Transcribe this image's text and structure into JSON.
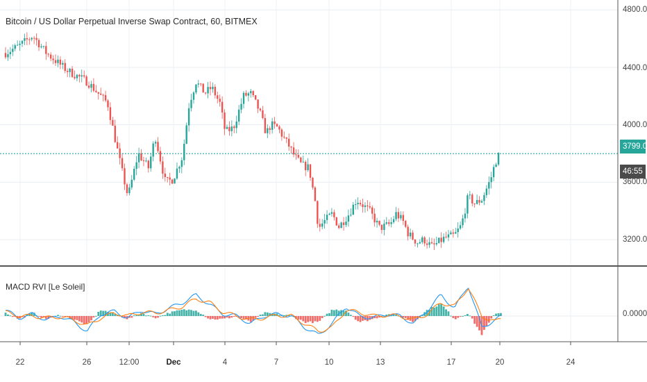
{
  "header": {
    "title": "Bitcoin / US Dollar Perpetual Inverse Swap Contract, 60, BITMEX",
    "indicator": "MACD RVI [Le Soleil]"
  },
  "price_axis": {
    "ticks": [
      "4800.0",
      "4400.0",
      "4000.0",
      "3600.0",
      "3200.0"
    ],
    "last_price": "3799.0",
    "countdown": "46:55",
    "last_price_color": "#26a69a",
    "countdown_color": "#4a4a4a"
  },
  "indicator_axis": {
    "ticks": [
      "0.0000"
    ]
  },
  "time_axis": {
    "labels": [
      "22",
      "26",
      "12:00",
      "Dec",
      "4",
      "7",
      "10",
      "13",
      "17",
      "20",
      "24"
    ]
  },
  "colors": {
    "up": "#26a69a",
    "down": "#ef5350",
    "macd_line": "#2196f3",
    "signal_line": "#ff7f0e",
    "price_line": "#26a69a"
  },
  "chart_data": [
    {
      "type": "candlestick",
      "title": "Bitcoin / US Dollar Perpetual Inverse Swap Contract, 60, BITMEX",
      "x_labels": [
        "22",
        "26",
        "12:00",
        "Dec",
        "4",
        "7",
        "10",
        "13",
        "17",
        "20",
        "24"
      ],
      "ylim": [
        3050,
        4850
      ],
      "last_price": 3799.0,
      "price_path": [
        [
          0,
          4500
        ],
        [
          2,
          4550
        ],
        [
          4,
          4620
        ],
        [
          6,
          4500
        ],
        [
          9,
          4380
        ],
        [
          12,
          4300
        ],
        [
          15,
          4150
        ],
        [
          17,
          3700
        ],
        [
          18,
          3500
        ],
        [
          19.5,
          3800
        ],
        [
          21,
          3700
        ],
        [
          22,
          3920
        ],
        [
          23.5,
          3600
        ],
        [
          24.6,
          3620
        ],
        [
          26,
          3780
        ],
        [
          27,
          4150
        ],
        [
          28,
          4300
        ],
        [
          29.3,
          4220
        ],
        [
          30.3,
          4260
        ],
        [
          31.5,
          4150
        ],
        [
          32.3,
          3950
        ],
        [
          33.5,
          3980
        ],
        [
          35,
          4200
        ],
        [
          36,
          4220
        ],
        [
          37.3,
          4100
        ],
        [
          38.3,
          3940
        ],
        [
          39,
          4000
        ],
        [
          40,
          3980
        ],
        [
          41,
          3900
        ],
        [
          41.7,
          3850
        ],
        [
          42.5,
          3780
        ],
        [
          43.5,
          3720
        ],
        [
          44.6,
          3700
        ],
        [
          45.5,
          3470
        ],
        [
          46,
          3280
        ],
        [
          46.7,
          3320
        ],
        [
          48,
          3380
        ],
        [
          49,
          3290
        ],
        [
          50.5,
          3380
        ],
        [
          51.6,
          3480
        ],
        [
          53.5,
          3400
        ],
        [
          55,
          3280
        ],
        [
          56.6,
          3310
        ],
        [
          57.4,
          3380
        ],
        [
          58.4,
          3330
        ],
        [
          59.2,
          3240
        ],
        [
          60.5,
          3180
        ],
        [
          61.5,
          3200
        ],
        [
          62.7,
          3150
        ],
        [
          64.5,
          3210
        ],
        [
          66,
          3230
        ],
        [
          67,
          3300
        ],
        [
          68,
          3500
        ],
        [
          69,
          3450
        ],
        [
          70,
          3480
        ],
        [
          71.3,
          3620
        ],
        [
          72,
          3740
        ],
        [
          72.6,
          3799
        ]
      ]
    },
    {
      "type": "line",
      "title": "MACD RVI [Le Soleil]",
      "ytick": "0.0000",
      "series": [
        {
          "color": "#2196f3",
          "values": [
            [
              0,
              0.15
            ],
            [
              2,
              -0.05
            ],
            [
              4,
              0.05
            ],
            [
              6,
              -0.1
            ],
            [
              8,
              0.0
            ],
            [
              10,
              -0.15
            ],
            [
              12,
              -0.4
            ],
            [
              14,
              0.05
            ],
            [
              16,
              0.12
            ],
            [
              18,
              -0.05
            ],
            [
              20,
              0.15
            ],
            [
              22,
              0.05
            ],
            [
              24,
              0.2
            ],
            [
              26,
              0.35
            ],
            [
              28,
              0.55
            ],
            [
              30,
              0.3
            ],
            [
              32,
              0.05
            ],
            [
              34,
              0.0
            ],
            [
              36,
              -0.2
            ],
            [
              38,
              0.0
            ],
            [
              40,
              0.05
            ],
            [
              42,
              0.0
            ],
            [
              44,
              -0.3
            ],
            [
              46,
              -0.5
            ],
            [
              48,
              -0.2
            ],
            [
              50,
              0.25
            ],
            [
              52,
              0.0
            ],
            [
              54,
              -0.05
            ],
            [
              56,
              0.05
            ],
            [
              58,
              0.0
            ],
            [
              60,
              -0.2
            ],
            [
              62,
              0.15
            ],
            [
              64,
              0.55
            ],
            [
              66,
              0.2
            ],
            [
              68,
              0.8
            ],
            [
              70,
              -0.3
            ],
            [
              72,
              -0.1
            ],
            [
              73,
              0.0
            ]
          ]
        },
        {
          "color": "#ff7f0e",
          "values": [
            [
              0,
              0.1
            ],
            [
              2,
              0.0
            ],
            [
              4,
              0.0
            ],
            [
              6,
              -0.05
            ],
            [
              8,
              -0.02
            ],
            [
              10,
              -0.1
            ],
            [
              12,
              -0.25
            ],
            [
              14,
              -0.05
            ],
            [
              16,
              0.08
            ],
            [
              18,
              0.0
            ],
            [
              20,
              0.1
            ],
            [
              22,
              0.08
            ],
            [
              24,
              0.15
            ],
            [
              26,
              0.25
            ],
            [
              28,
              0.45
            ],
            [
              30,
              0.35
            ],
            [
              32,
              0.1
            ],
            [
              34,
              0.0
            ],
            [
              36,
              -0.1
            ],
            [
              38,
              -0.05
            ],
            [
              40,
              0.02
            ],
            [
              42,
              0.0
            ],
            [
              44,
              -0.2
            ],
            [
              46,
              -0.4
            ],
            [
              48,
              -0.3
            ],
            [
              50,
              0.15
            ],
            [
              52,
              0.1
            ],
            [
              54,
              0.0
            ],
            [
              56,
              0.02
            ],
            [
              58,
              0.0
            ],
            [
              60,
              -0.1
            ],
            [
              62,
              0.05
            ],
            [
              64,
              0.35
            ],
            [
              66,
              0.25
            ],
            [
              68,
              0.75
            ],
            [
              70,
              0.0
            ],
            [
              72,
              -0.15
            ],
            [
              73,
              -0.05
            ]
          ]
        }
      ]
    }
  ]
}
